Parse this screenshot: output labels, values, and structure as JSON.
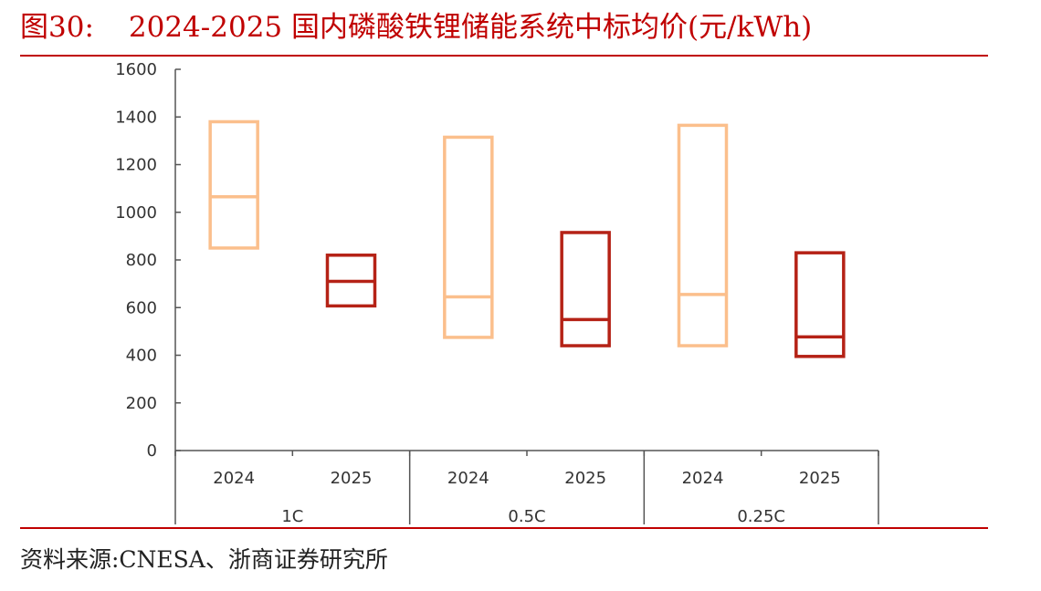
{
  "title": {
    "label": "图30:",
    "text": "2024-2025 国内磷酸铁锂储能系统中标均价(元/kWh)"
  },
  "source": "资料来源:CNESA、浙商证券研究所",
  "colors": {
    "accent": "#c00000",
    "series_2024": "#fbbf8c",
    "series_2025": "#b52216"
  },
  "chart_data": {
    "type": "box",
    "ylim": [
      0,
      1600
    ],
    "yticks": [
      0,
      200,
      400,
      600,
      800,
      1000,
      1200,
      1400,
      1600
    ],
    "groups": [
      {
        "label": "1C",
        "boxes": [
          {
            "year": "2024",
            "low": 850,
            "mid": 1065,
            "high": 1380
          },
          {
            "year": "2025",
            "low": 607,
            "mid": 710,
            "high": 820
          }
        ]
      },
      {
        "label": "0.5C",
        "boxes": [
          {
            "year": "2024",
            "low": 475,
            "mid": 645,
            "high": 1315
          },
          {
            "year": "2025",
            "low": 440,
            "mid": 550,
            "high": 915
          }
        ]
      },
      {
        "label": "0.25C",
        "boxes": [
          {
            "year": "2024",
            "low": 440,
            "mid": 655,
            "high": 1365
          },
          {
            "year": "2025",
            "low": 395,
            "mid": 477,
            "high": 830
          }
        ]
      }
    ]
  }
}
